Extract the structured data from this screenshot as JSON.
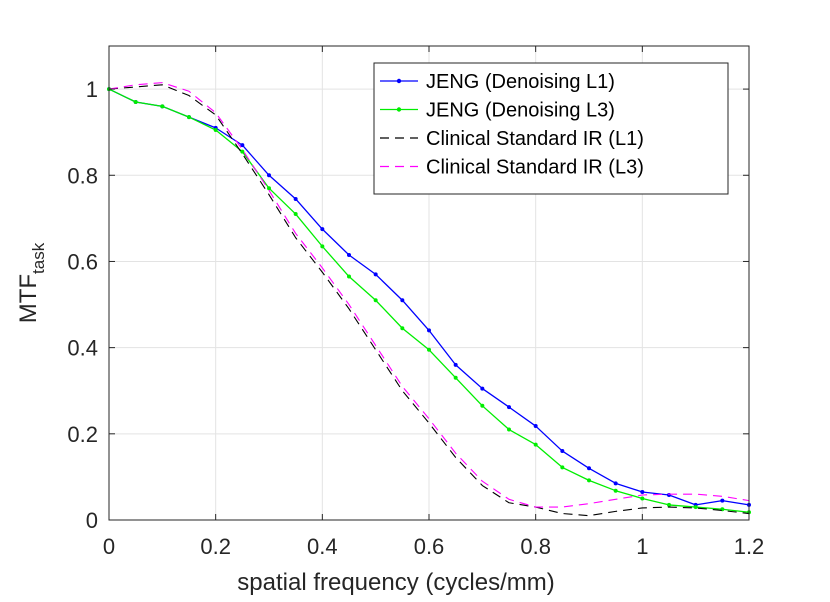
{
  "chart_data": {
    "type": "line",
    "title": "",
    "xlabel": "spatial frequency (cycles/mm)",
    "ylabel": "MTF",
    "ylabel_subscript": "task",
    "xlim": [
      0,
      1.2
    ],
    "ylim": [
      0,
      1.1
    ],
    "grid": true,
    "legend_position": "top-right",
    "xticks": [
      0,
      0.2,
      0.4,
      0.6,
      0.8,
      1,
      1.2
    ],
    "xtick_labels": [
      "0",
      "0.2",
      "0.4",
      "0.6",
      "0.8",
      "1",
      "1.2"
    ],
    "yticks": [
      0,
      0.2,
      0.4,
      0.6,
      0.8,
      1
    ],
    "ytick_labels": [
      "0",
      "0.2",
      "0.4",
      "0.6",
      "0.8",
      "1"
    ],
    "series": [
      {
        "name": "JENG (Denoising L1)",
        "color": "#0000ff",
        "style": "solid",
        "marker": true,
        "x": [
          0,
          0.05,
          0.1,
          0.15,
          0.2,
          0.25,
          0.3,
          0.35,
          0.4,
          0.45,
          0.5,
          0.55,
          0.6,
          0.65,
          0.7,
          0.75,
          0.8,
          0.85,
          0.9,
          0.95,
          1.0,
          1.05,
          1.1,
          1.15,
          1.2
        ],
        "y": [
          1.0,
          0.97,
          0.96,
          0.935,
          0.91,
          0.87,
          0.8,
          0.745,
          0.675,
          0.615,
          0.57,
          0.51,
          0.44,
          0.36,
          0.305,
          0.262,
          0.218,
          0.16,
          0.12,
          0.085,
          0.065,
          0.058,
          0.035,
          0.045,
          0.035
        ]
      },
      {
        "name": "JENG (Denoising L3)",
        "color": "#00ee00",
        "style": "solid",
        "marker": true,
        "x": [
          0,
          0.05,
          0.1,
          0.15,
          0.2,
          0.25,
          0.3,
          0.35,
          0.4,
          0.45,
          0.5,
          0.55,
          0.6,
          0.65,
          0.7,
          0.75,
          0.8,
          0.85,
          0.9,
          0.95,
          1.0,
          1.05,
          1.1,
          1.15,
          1.2
        ],
        "y": [
          1.0,
          0.97,
          0.96,
          0.935,
          0.905,
          0.855,
          0.77,
          0.71,
          0.635,
          0.565,
          0.51,
          0.445,
          0.395,
          0.33,
          0.265,
          0.21,
          0.175,
          0.122,
          0.092,
          0.068,
          0.05,
          0.035,
          0.03,
          0.025,
          0.018
        ]
      },
      {
        "name": "Clinical Standard IR (L1)",
        "color": "#000000",
        "style": "dashed",
        "marker": false,
        "x": [
          0,
          0.05,
          0.1,
          0.15,
          0.2,
          0.25,
          0.3,
          0.35,
          0.4,
          0.45,
          0.5,
          0.55,
          0.6,
          0.65,
          0.7,
          0.75,
          0.8,
          0.85,
          0.9,
          0.95,
          1.0,
          1.05,
          1.1,
          1.15,
          1.2
        ],
        "y": [
          1.0,
          1.005,
          1.01,
          0.985,
          0.94,
          0.85,
          0.755,
          0.655,
          0.575,
          0.49,
          0.395,
          0.3,
          0.225,
          0.145,
          0.08,
          0.04,
          0.03,
          0.015,
          0.01,
          0.02,
          0.028,
          0.03,
          0.028,
          0.022,
          0.015
        ]
      },
      {
        "name": "Clinical Standard IR (L3)",
        "color": "#ff00ff",
        "style": "dashed",
        "marker": false,
        "x": [
          0,
          0.05,
          0.1,
          0.15,
          0.2,
          0.25,
          0.3,
          0.35,
          0.4,
          0.45,
          0.5,
          0.55,
          0.6,
          0.65,
          0.7,
          0.75,
          0.8,
          0.85,
          0.9,
          0.95,
          1.0,
          1.05,
          1.1,
          1.15,
          1.2
        ],
        "y": [
          1.0,
          1.01,
          1.015,
          0.995,
          0.945,
          0.86,
          0.765,
          0.665,
          0.585,
          0.5,
          0.405,
          0.31,
          0.235,
          0.155,
          0.09,
          0.048,
          0.03,
          0.03,
          0.038,
          0.048,
          0.058,
          0.06,
          0.06,
          0.055,
          0.045
        ]
      }
    ]
  }
}
